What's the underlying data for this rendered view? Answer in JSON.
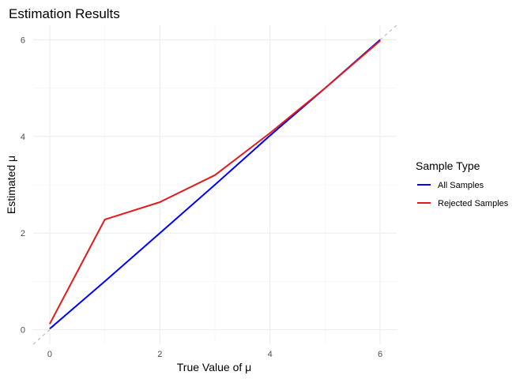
{
  "chart_data": {
    "type": "line",
    "title": "Estimation Results",
    "xlabel": "True Value of μ",
    "ylabel": "Estimated μ",
    "xlim": [
      -0.3,
      6.3
    ],
    "ylim": [
      -0.3,
      6.3
    ],
    "xticks": [
      0,
      2,
      4,
      6
    ],
    "yticks": [
      0,
      2,
      4,
      6
    ],
    "grid": true,
    "reference_line": "y = x (dashed)",
    "legend": {
      "title": "Sample Type",
      "placement": "right"
    },
    "series": [
      {
        "name": "All Samples",
        "color": "#0000ff",
        "x": [
          0,
          1,
          2,
          3,
          4,
          5,
          6
        ],
        "y": [
          0.02,
          1.0,
          2.0,
          3.0,
          4.02,
          5.0,
          6.0
        ]
      },
      {
        "name": "Rejected Samples",
        "color": "#e41a1c",
        "x": [
          0,
          1,
          2,
          3,
          4,
          5,
          6
        ],
        "y": [
          0.12,
          2.28,
          2.64,
          3.2,
          4.07,
          5.0,
          5.98
        ]
      }
    ]
  }
}
